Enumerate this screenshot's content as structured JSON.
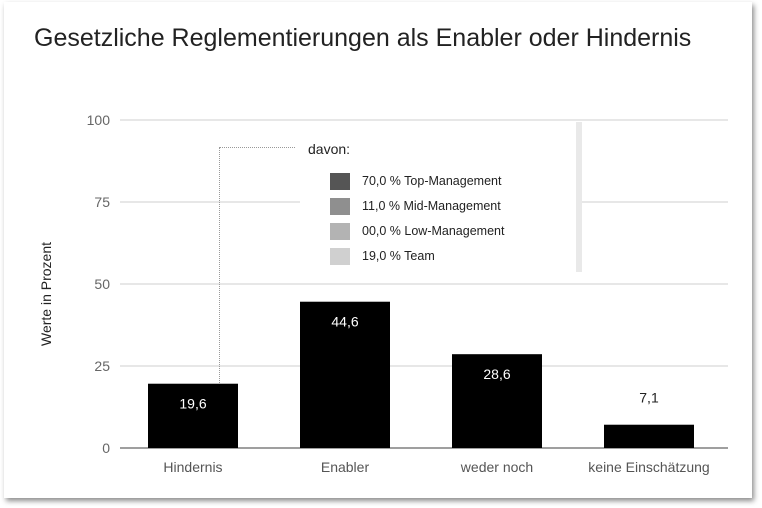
{
  "title": "Gesetzliche Reglementierungen als Enabler oder Hindernis",
  "note": {
    "heading": "davon:",
    "items": [
      {
        "label": "70,0 % Top-Management",
        "color": "#555555"
      },
      {
        "label": "11,0 % Mid-Management",
        "color": "#8f8f8f"
      },
      {
        "label": "00,0 % Low-Management",
        "color": "#b3b3b3"
      },
      {
        "label": "19,0 % Team",
        "color": "#d0d0d0"
      }
    ]
  },
  "chart_data": {
    "type": "bar",
    "title": "Gesetzliche Reglementierungen als Enabler oder Hindernis",
    "xlabel": "",
    "ylabel": "Werte in Prozent",
    "categories": [
      "Hindernis",
      "Enabler",
      "weder noch",
      "keine Einschätzung"
    ],
    "values": [
      19.6,
      44.6,
      28.6,
      7.1
    ],
    "value_labels": [
      "19,6",
      "44,6",
      "28,6",
      "7,1"
    ],
    "ylim": [
      0,
      100
    ],
    "yticks": [
      0,
      25,
      50,
      75,
      100
    ],
    "grid": true,
    "bar_color": "#000000"
  }
}
